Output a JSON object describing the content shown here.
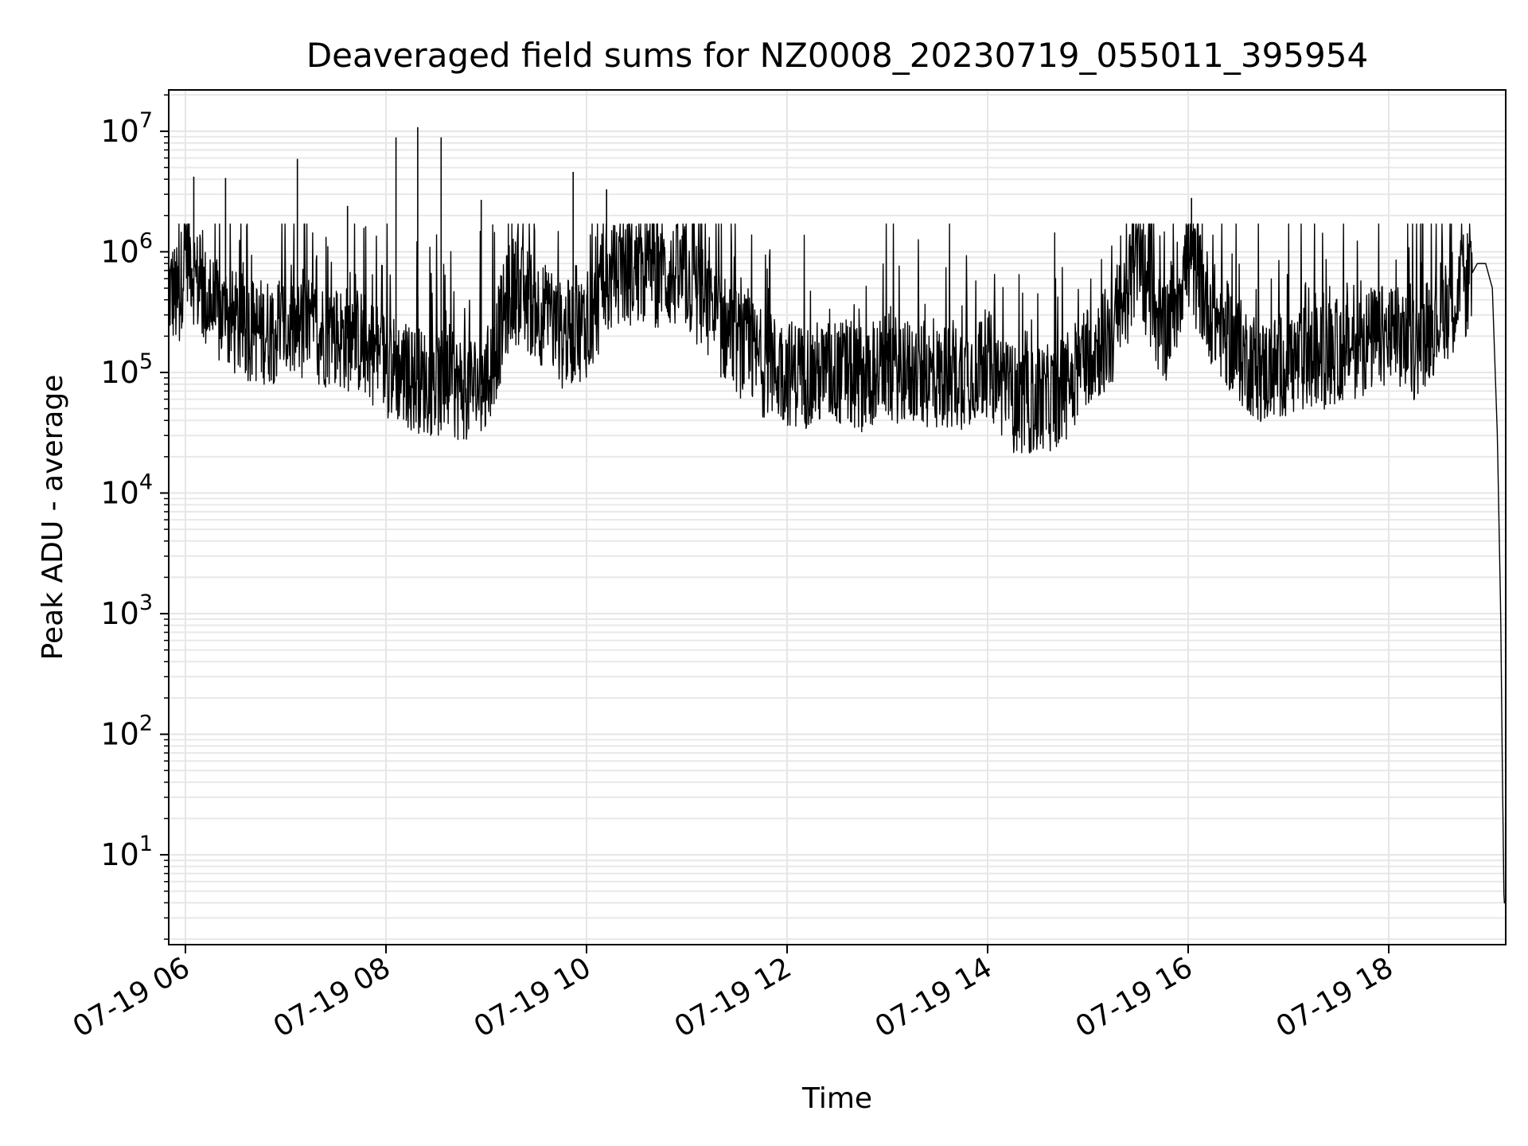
{
  "chart_data": {
    "type": "line",
    "title": "Deaveraged field sums for NZ0008_20230719_055011_395954",
    "xlabel": "Time",
    "ylabel": "Peak ADU - average",
    "y_scale": "log",
    "ylim": [
      1.8,
      22000000
    ],
    "xlim": [
      "2023-07-19T05:50",
      "2023-07-19T19:10"
    ],
    "grid": true,
    "line_color": "#000000",
    "x_ticks": [
      {
        "value": "2023-07-19T06:00",
        "label": "07-19 06"
      },
      {
        "value": "2023-07-19T08:00",
        "label": "07-19 08"
      },
      {
        "value": "2023-07-19T10:00",
        "label": "07-19 10"
      },
      {
        "value": "2023-07-19T12:00",
        "label": "07-19 12"
      },
      {
        "value": "2023-07-19T14:00",
        "label": "07-19 14"
      },
      {
        "value": "2023-07-19T16:00",
        "label": "07-19 16"
      },
      {
        "value": "2023-07-19T18:00",
        "label": "07-19 18"
      }
    ],
    "y_ticks": [
      {
        "value": 10,
        "base": "10",
        "exp": "1"
      },
      {
        "value": 100,
        "base": "10",
        "exp": "2"
      },
      {
        "value": 1000,
        "base": "10",
        "exp": "3"
      },
      {
        "value": 10000,
        "base": "10",
        "exp": "4"
      },
      {
        "value": 100000,
        "base": "10",
        "exp": "5"
      },
      {
        "value": 1000000,
        "base": "10",
        "exp": "6"
      },
      {
        "value": 10000000,
        "base": "10",
        "exp": "7"
      }
    ],
    "series": [
      {
        "x": [
          "2023-07-19T05:50",
          "2023-07-19T05:53",
          "2023-07-19T05:56",
          "2023-07-19T06:00",
          "2023-07-19T06:03",
          "2023-07-19T06:06",
          "2023-07-19T06:10",
          "2023-07-19T06:15",
          "2023-07-19T06:20",
          "2023-07-19T06:30",
          "2023-07-19T06:45",
          "2023-07-19T07:00",
          "2023-07-19T07:15",
          "2023-07-19T07:30",
          "2023-07-19T07:45",
          "2023-07-19T08:00",
          "2023-07-19T08:15",
          "2023-07-19T08:30",
          "2023-07-19T08:45",
          "2023-07-19T09:00",
          "2023-07-19T09:15",
          "2023-07-19T09:30",
          "2023-07-19T09:45",
          "2023-07-19T10:00",
          "2023-07-19T10:15",
          "2023-07-19T10:30",
          "2023-07-19T10:45",
          "2023-07-19T11:00",
          "2023-07-19T11:15",
          "2023-07-19T11:30",
          "2023-07-19T11:45",
          "2023-07-19T12:00",
          "2023-07-19T12:15",
          "2023-07-19T12:30",
          "2023-07-19T12:45",
          "2023-07-19T13:00",
          "2023-07-19T13:15",
          "2023-07-19T13:30",
          "2023-07-19T13:45",
          "2023-07-19T14:00",
          "2023-07-19T14:15",
          "2023-07-19T14:30",
          "2023-07-19T14:45",
          "2023-07-19T15:00",
          "2023-07-19T15:15",
          "2023-07-19T15:30",
          "2023-07-19T15:45",
          "2023-07-19T16:00",
          "2023-07-19T16:15",
          "2023-07-19T16:30",
          "2023-07-19T16:45",
          "2023-07-19T17:00",
          "2023-07-19T17:15",
          "2023-07-19T17:30",
          "2023-07-19T17:45",
          "2023-07-19T18:00",
          "2023-07-19T18:15",
          "2023-07-19T18:30",
          "2023-07-19T18:45",
          "2023-07-19T18:53",
          "2023-07-19T18:58",
          "2023-07-19T19:02",
          "2023-07-19T19:05",
          "2023-07-19T19:07",
          "2023-07-19T19:08",
          "2023-07-19T19:09",
          "2023-07-19T19:10"
        ],
        "values": [
          500000,
          450000,
          380000,
          1200000,
          900000,
          600000,
          450000,
          350000,
          300000,
          250000,
          220000,
          230000,
          220000,
          200000,
          180000,
          120000,
          90000,
          80000,
          75000,
          80000,
          500000,
          350000,
          200000,
          250000,
          600000,
          700000,
          650000,
          600000,
          300000,
          180000,
          120000,
          100000,
          95000,
          100000,
          90000,
          110000,
          100000,
          90000,
          95000,
          120000,
          60000,
          55000,
          70000,
          150000,
          200000,
          900000,
          200000,
          900000,
          300000,
          150000,
          100000,
          120000,
          130000,
          150000,
          180000,
          200000,
          160000,
          300000,
          500000,
          800000,
          800000,
          500000,
          30000,
          1000,
          50,
          4,
          4
        ]
      }
    ],
    "spikes": [
      {
        "x": "2023-07-19T06:05",
        "y": 4200000
      },
      {
        "x": "2023-07-19T06:24",
        "y": 4100000
      },
      {
        "x": "2023-07-19T07:07",
        "y": 5900000
      },
      {
        "x": "2023-07-19T07:37",
        "y": 2400000
      },
      {
        "x": "2023-07-19T08:06",
        "y": 8900000
      },
      {
        "x": "2023-07-19T08:19",
        "y": 10800000
      },
      {
        "x": "2023-07-19T08:33",
        "y": 8900000
      },
      {
        "x": "2023-07-19T08:57",
        "y": 2700000
      },
      {
        "x": "2023-07-19T09:52",
        "y": 4600000
      },
      {
        "x": "2023-07-19T10:12",
        "y": 3300000
      },
      {
        "x": "2023-07-19T16:02",
        "y": 2800000
      }
    ]
  }
}
